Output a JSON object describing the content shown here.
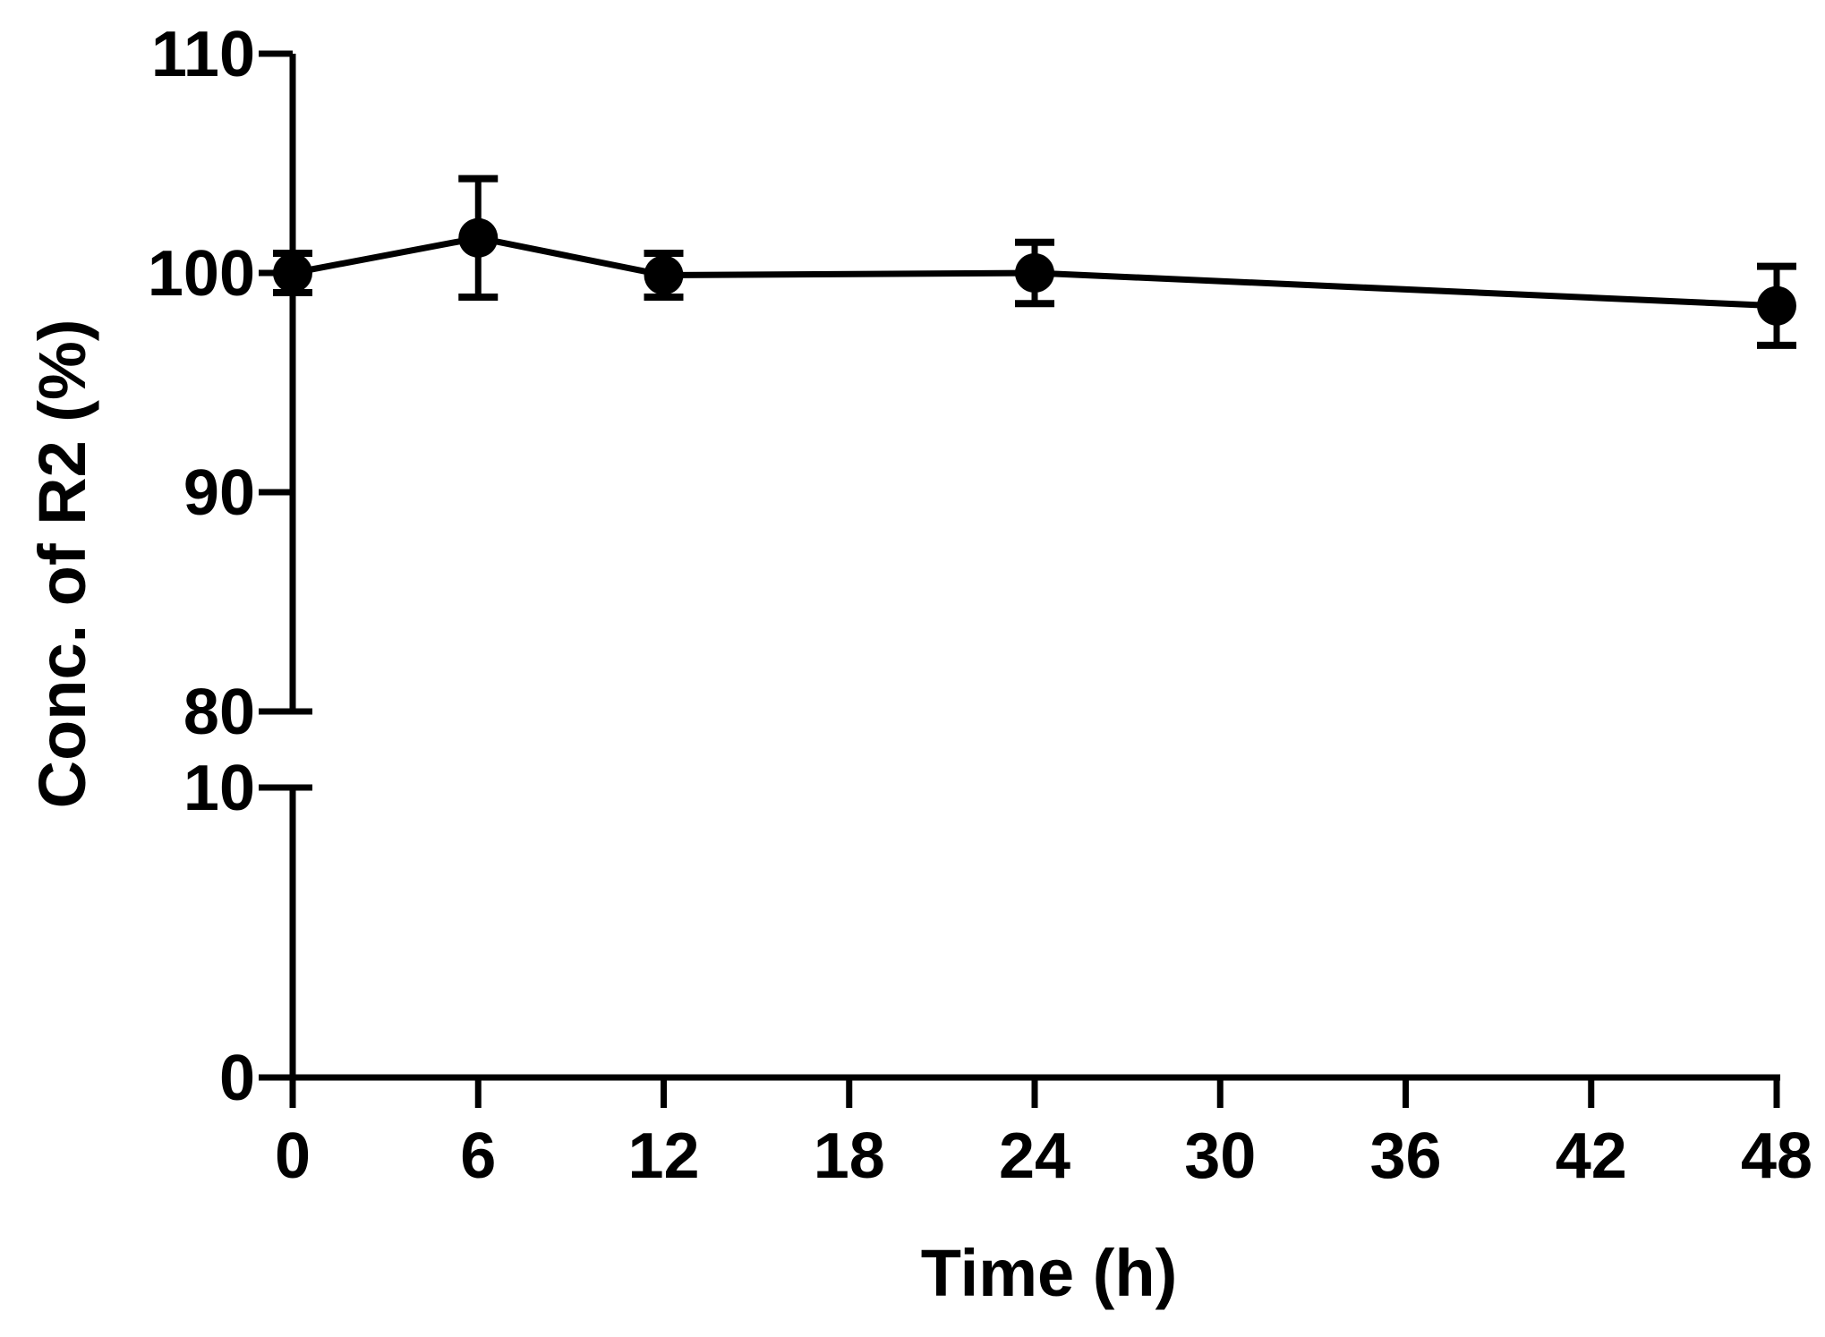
{
  "chart_data": {
    "type": "line",
    "title": "",
    "xlabel": "Time (h)",
    "ylabel": "Conc. of R2 (%)",
    "x": [
      0,
      6,
      12,
      24,
      48
    ],
    "series": [
      {
        "values": [
          100.0,
          101.6,
          99.9,
          100.0,
          98.5
        ],
        "error": [
          0.9,
          2.7,
          1.0,
          1.4,
          1.8
        ]
      }
    ],
    "xlim": [
      0,
      48
    ],
    "x_ticks": [
      "0",
      "6",
      "12",
      "18",
      "24",
      "30",
      "36",
      "42",
      "48"
    ],
    "y_axis_break": true,
    "y_lower_range": [
      0,
      10
    ],
    "y_upper_range": [
      80,
      110
    ],
    "y_ticks_lower": [
      "0",
      "10"
    ],
    "y_ticks_upper": [
      "80",
      "90",
      "100",
      "110"
    ],
    "grid": false,
    "legend": "none",
    "colors": {
      "line": "#000000",
      "marker": "#000000",
      "axis": "#000000"
    }
  }
}
